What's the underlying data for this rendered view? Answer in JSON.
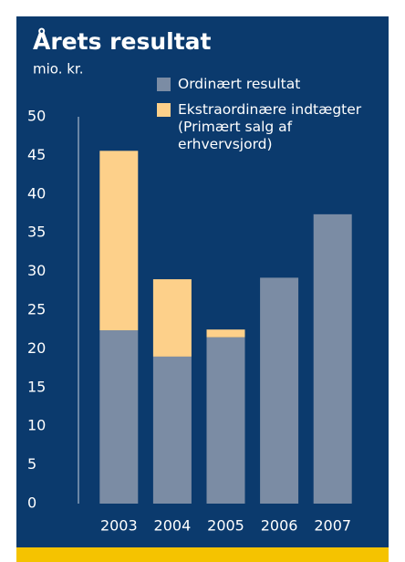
{
  "chart_data": {
    "type": "stacked_bar",
    "title": "Årets resultat",
    "y_axis_label": "mio. kr.",
    "categories": [
      "2003",
      "2004",
      "2005",
      "2006",
      "2007"
    ],
    "series": [
      {
        "name": "Ordinært resultat",
        "color": "#7b8ca4",
        "values": [
          22.4,
          19.0,
          21.5,
          29.2,
          37.4
        ]
      },
      {
        "name": "Ekstraordinære indtægter (Primært salg af erhvervsjord)",
        "color": "#fdd08a",
        "values": [
          23.2,
          10.0,
          1.0,
          0,
          0
        ]
      }
    ],
    "ylim": [
      0,
      50
    ],
    "yticks": [
      0,
      5,
      10,
      15,
      20,
      25,
      30,
      35,
      40,
      45,
      50
    ],
    "grid": false
  }
}
